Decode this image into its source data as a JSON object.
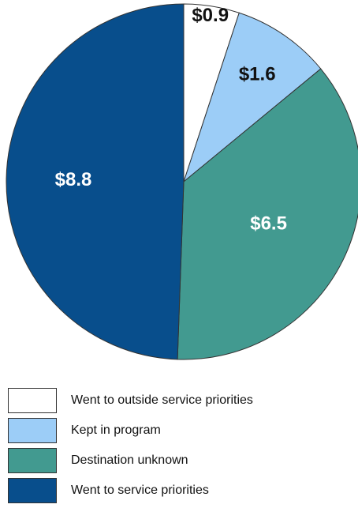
{
  "chart_data": {
    "type": "pie",
    "title": "",
    "start": "12 o'clock",
    "direction": "clockwise",
    "slices": [
      {
        "label": "Went to outside service priorities",
        "value": 0.9,
        "display": "$0.9",
        "color": "#ffffff",
        "label_color": "#111111"
      },
      {
        "label": "Kept in program",
        "value": 1.6,
        "display": "$1.6",
        "color": "#9ccdf7",
        "label_color": "#111111"
      },
      {
        "label": "Destination unknown",
        "value": 6.5,
        "display": "$6.5",
        "color": "#429a90",
        "label_color": "#ffffff"
      },
      {
        "label": "Went to service priorities",
        "value": 8.8,
        "display": "$8.8",
        "color": "#084e8c",
        "label_color": "#ffffff"
      }
    ],
    "legend_position": "bottom"
  }
}
